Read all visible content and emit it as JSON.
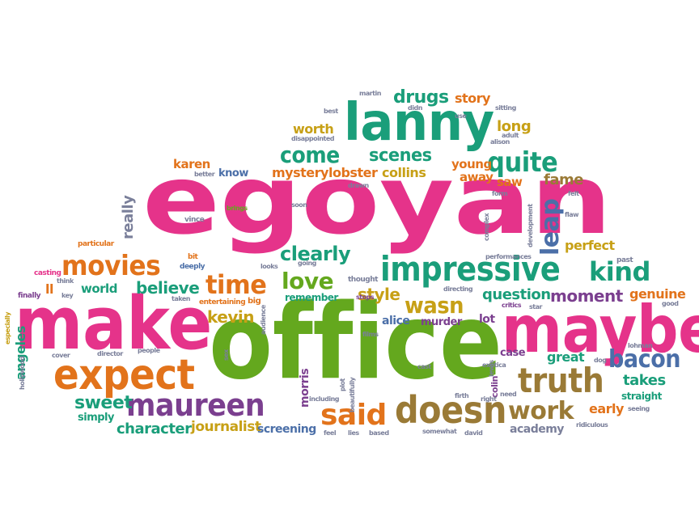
{
  "palette": {
    "pink": "#e5338a",
    "green": "#64a81e",
    "teal": "#1a9e7a",
    "orange": "#e2731b",
    "purple": "#7b3f8f",
    "gold": "#c7a016",
    "brown": "#9a7a36",
    "blue": "#4b6fa8",
    "slate": "#7a7f9a"
  },
  "words": {
    "egoyan": "egoyan",
    "office": "office",
    "make": "make",
    "maybe": "maybe",
    "lanny": "lanny",
    "impressive": "impressive",
    "expect": "expect",
    "maureen": "maureen",
    "doesn": "doesn",
    "truth": "truth",
    "movies": "movies",
    "said": "said",
    "time": "time",
    "quite": "quite",
    "come": "come",
    "scenes": "scenes",
    "drugs": "drugs",
    "leap": "leap",
    "love": "love",
    "kind": "kind",
    "bacon": "bacon",
    "work": "work",
    "wasn": "wasn",
    "clearly": "clearly",
    "believe": "believe",
    "style": "style",
    "question": "question",
    "moment": "moment",
    "kevin": "kevin",
    "sweet": "sweet",
    "character": "character",
    "journalist": "journalist",
    "story": "story",
    "long": "long",
    "worth": "worth",
    "mystery": "mystery",
    "lobster": "lobster",
    "collins": "collins",
    "young": "young",
    "away": "away",
    "saw": "saw",
    "fame": "fame",
    "perfect": "perfect",
    "genuine": "genuine",
    "great": "great",
    "takes": "takes",
    "early": "early",
    "academy": "academy",
    "world": "world",
    "really": "really",
    "karen": "karen",
    "know": "know",
    "angeles": "angeles",
    "simply": "simply",
    "screening": "screening",
    "morris": "morris",
    "alice": "alice",
    "murder": "murder",
    "lot": "lot",
    "case": "case",
    "remember": "remember",
    "straight": "straight",
    "colin": "colin",
    "ll": "ll",
    "bit": "bit",
    "vince": "vince",
    "brings": "brings",
    "drawn": "drawn",
    "particular": "particular",
    "casting": "casting",
    "deeply": "deeply",
    "looks": "looks",
    "going": "going",
    "thought": "thought",
    "performances": "performances",
    "past": "past",
    "finally": "finally",
    "think": "think",
    "key": "key",
    "taken": "taken",
    "entertaining": "entertaining",
    "big": "big",
    "audience": "audience",
    "stops": "stops",
    "directing": "directing",
    "critics": "critics",
    "star": "star",
    "good": "good",
    "especially": "especially",
    "hollywood": "hollywood",
    "cover": "cover",
    "director": "director",
    "people": "people",
    "sex": "sex",
    "plot": "plot",
    "beautifully": "beautifully",
    "films": "films",
    "cast": "cast",
    "exotica": "exotica",
    "lewis": "lewis",
    "dog": "dog",
    "lohman": "lohman",
    "secret": "secret",
    "seeing": "seeing",
    "ridiculous": "ridiculous",
    "firth": "firth",
    "right": "right",
    "need": "need",
    "including": "including",
    "feel": "feel",
    "lies": "lies",
    "based": "based",
    "somewhat": "somewhat",
    "david": "david",
    "martin": "martin",
    "best": "best",
    "didn": "didn",
    "disappointed": "disappointed",
    "use": "use",
    "sitting": "sitting",
    "alison": "alison",
    "adult": "adult",
    "better": "better",
    "soon": "soon",
    "form": "form",
    "felt": "felt",
    "complex": "complex",
    "development": "development",
    "flaw": "flaw"
  }
}
